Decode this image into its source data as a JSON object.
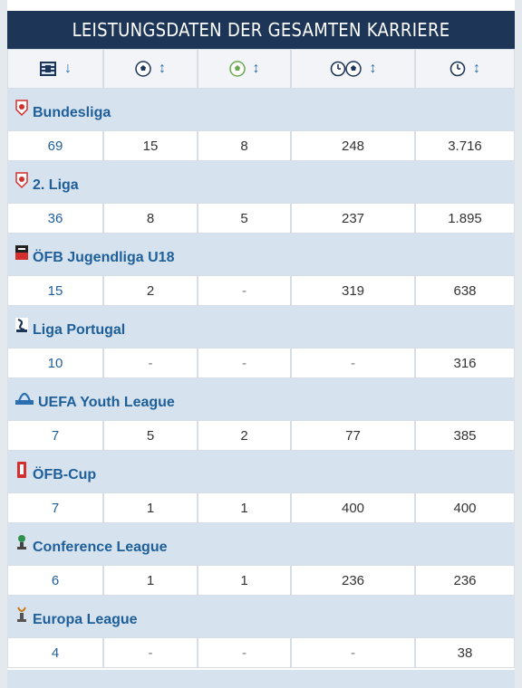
{
  "title": "LEISTUNGSDATEN DER GESAMTEN KARRIERE",
  "header": {
    "icons": [
      "lineup-icon",
      "ball-icon",
      "assist-ball-icon",
      "clock-ball-icon",
      "clock-icon"
    ],
    "sort_arrows": [
      "↓",
      "↕",
      "↕",
      "↕",
      "↕"
    ]
  },
  "competitions": [
    {
      "name": "Bundesliga",
      "values": [
        "69",
        "15",
        "8",
        "248",
        "3.716"
      ]
    },
    {
      "name": "2. Liga",
      "values": [
        "36",
        "8",
        "5",
        "237",
        "1.895"
      ]
    },
    {
      "name": "ÖFB Jugendliga U18",
      "values": [
        "15",
        "2",
        "-",
        "319",
        "638"
      ]
    },
    {
      "name": "Liga Portugal",
      "values": [
        "10",
        "-",
        "-",
        "-",
        "316"
      ]
    },
    {
      "name": "UEFA Youth League",
      "values": [
        "7",
        "5",
        "2",
        "77",
        "385"
      ]
    },
    {
      "name": "ÖFB-Cup",
      "values": [
        "7",
        "1",
        "1",
        "400",
        "400"
      ]
    },
    {
      "name": "Conference League",
      "values": [
        "6",
        "1",
        "1",
        "236",
        "236"
      ]
    },
    {
      "name": "Europa League",
      "values": [
        "4",
        "-",
        "-",
        "-",
        "38"
      ]
    }
  ],
  "colors": {
    "title_bg": "#1d3557",
    "link": "#1f5f99",
    "group_bg": "#d6e3ef"
  }
}
